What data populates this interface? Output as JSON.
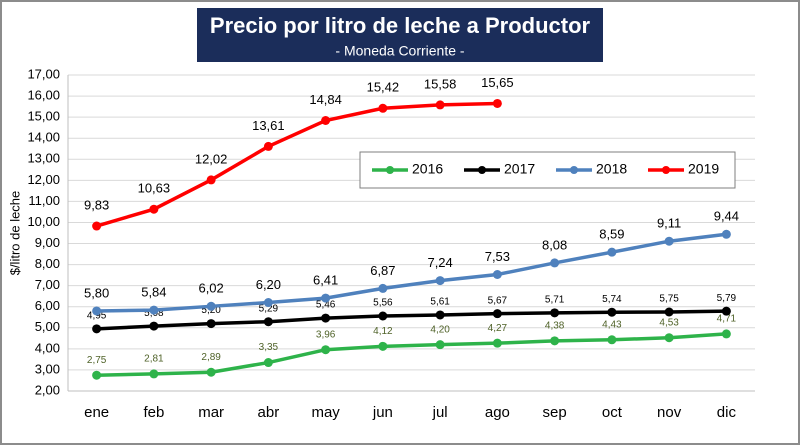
{
  "chart_data": {
    "type": "line",
    "title": "Precio por litro de leche a Productor",
    "subtitle": "- Moneda Corriente -",
    "y_label": "$/litro de leche",
    "categories": [
      "ene",
      "feb",
      "mar",
      "abr",
      "may",
      "jun",
      "jul",
      "ago",
      "sep",
      "oct",
      "nov",
      "dic"
    ],
    "ylim": [
      2,
      17
    ],
    "yticks": [
      {
        "value": 2,
        "label": "2,00"
      },
      {
        "value": 3,
        "label": "3,00"
      },
      {
        "value": 4,
        "label": "4,00"
      },
      {
        "value": 5,
        "label": "5,00"
      },
      {
        "value": 6,
        "label": "6,00"
      },
      {
        "value": 7,
        "label": "7,00"
      },
      {
        "value": 8,
        "label": "8,00"
      },
      {
        "value": 9,
        "label": "9,00"
      },
      {
        "value": 10,
        "label": "10,00"
      },
      {
        "value": 11,
        "label": "11,00"
      },
      {
        "value": 12,
        "label": "12,00"
      },
      {
        "value": 13,
        "label": "13,00"
      },
      {
        "value": 14,
        "label": "14,00"
      },
      {
        "value": 15,
        "label": "15,00"
      },
      {
        "value": 16,
        "label": "16,00"
      },
      {
        "value": 17,
        "label": "17,00"
      }
    ],
    "grid": true,
    "legend": "upper right",
    "series": [
      {
        "name": "2016",
        "color": "#2eb34a",
        "values": [
          2.75,
          2.81,
          2.89,
          3.35,
          3.96,
          4.12,
          4.2,
          4.27,
          4.38,
          4.43,
          4.53,
          4.71
        ],
        "value_labels": [
          "2,75",
          "2,81",
          "2,89",
          "3,35",
          "3,96",
          "4,12",
          "4,20",
          "4,27",
          "4,38",
          "4,43",
          "4,53",
          "4,71"
        ]
      },
      {
        "name": "2017",
        "color": "#000000",
        "values": [
          4.95,
          5.08,
          5.2,
          5.29,
          5.46,
          5.56,
          5.61,
          5.67,
          5.71,
          5.74,
          5.75,
          5.79
        ],
        "value_labels": [
          "4,95",
          "5,08",
          "5,20",
          "5,29",
          "5,46",
          "5,56",
          "5,61",
          "5,67",
          "5,71",
          "5,74",
          "5,75",
          "5,79"
        ]
      },
      {
        "name": "2018",
        "color": "#4f81bd",
        "values": [
          5.8,
          5.84,
          6.02,
          6.2,
          6.41,
          6.87,
          7.24,
          7.53,
          8.08,
          8.59,
          9.11,
          9.44
        ],
        "value_labels": [
          "5,80",
          "5,84",
          "6,02",
          "6,20",
          "6,41",
          "6,87",
          "7,24",
          "7,53",
          "8,08",
          "8,59",
          "9,11",
          "9,44"
        ]
      },
      {
        "name": "2019",
        "color": "#ff0000",
        "values": [
          9.83,
          10.63,
          12.02,
          13.61,
          14.84,
          15.42,
          15.58,
          15.65,
          null,
          null,
          null,
          null
        ],
        "value_labels": [
          "9,83",
          "10,63",
          "12,02",
          "13,61",
          "14,84",
          "15,42",
          "15,58",
          "15,65",
          null,
          null,
          null,
          null
        ]
      }
    ]
  }
}
